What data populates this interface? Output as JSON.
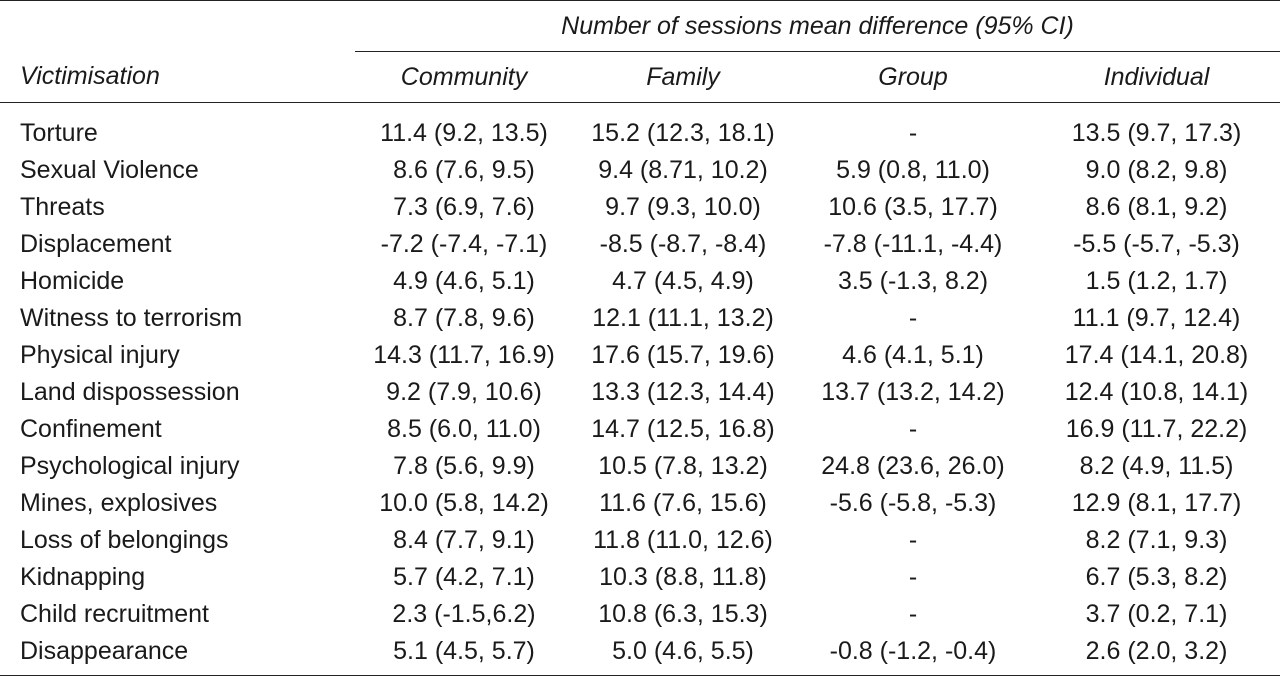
{
  "table": {
    "spanner": "Number of sessions mean difference (95% CI)",
    "headers": [
      "Victimisation",
      "Community",
      "Family",
      "Group",
      "Individual"
    ],
    "rows": [
      {
        "label": "Torture",
        "community": "11.4 (9.2, 13.5)",
        "family": "15.2 (12.3, 18.1)",
        "group": "-",
        "individual": "13.5 (9.7, 17.3)"
      },
      {
        "label": "Sexual Violence",
        "community": "8.6 (7.6, 9.5)",
        "family": "9.4 (8.71, 10.2)",
        "group": "5.9 (0.8, 11.0)",
        "individual": "9.0 (8.2, 9.8)"
      },
      {
        "label": "Threats",
        "community": "7.3 (6.9, 7.6)",
        "family": "9.7 (9.3, 10.0)",
        "group": "10.6 (3.5, 17.7)",
        "individual": "8.6 (8.1, 9.2)"
      },
      {
        "label": "Displacement",
        "community": "-7.2 (-7.4, -7.1)",
        "family": "-8.5 (-8.7, -8.4)",
        "group": "-7.8 (-11.1, -4.4)",
        "individual": "-5.5 (-5.7, -5.3)"
      },
      {
        "label": "Homicide",
        "community": "4.9 (4.6, 5.1)",
        "family": "4.7 (4.5, 4.9)",
        "group": "3.5 (-1.3, 8.2)",
        "individual": "1.5 (1.2, 1.7)"
      },
      {
        "label": "Witness to terrorism",
        "community": "8.7 (7.8, 9.6)",
        "family": "12.1 (11.1, 13.2)",
        "group": "-",
        "individual": "11.1 (9.7, 12.4)"
      },
      {
        "label": "Physical injury",
        "community": "14.3 (11.7, 16.9)",
        "family": "17.6 (15.7, 19.6)",
        "group": "4.6 (4.1, 5.1)",
        "individual": "17.4 (14.1, 20.8)"
      },
      {
        "label": "Land dispossession",
        "community": "9.2 (7.9, 10.6)",
        "family": "13.3 (12.3, 14.4)",
        "group": "13.7 (13.2, 14.2)",
        "individual": "12.4 (10.8, 14.1)"
      },
      {
        "label": "Confinement",
        "community": "8.5 (6.0, 11.0)",
        "family": "14.7 (12.5, 16.8)",
        "group": "-",
        "individual": "16.9 (11.7, 22.2)"
      },
      {
        "label": "Psychological injury",
        "community": "7.8 (5.6, 9.9)",
        "family": "10.5 (7.8, 13.2)",
        "group": "24.8 (23.6, 26.0)",
        "individual": "8.2 (4.9, 11.5)"
      },
      {
        "label": "Mines, explosives",
        "community": "10.0 (5.8, 14.2)",
        "family": "11.6 (7.6, 15.6)",
        "group": "-5.6 (-5.8, -5.3)",
        "individual": "12.9 (8.1, 17.7)"
      },
      {
        "label": "Loss of belongings",
        "community": "8.4 (7.7, 9.1)",
        "family": "11.8 (11.0, 12.6)",
        "group": "-",
        "individual": "8.2 (7.1, 9.3)"
      },
      {
        "label": "Kidnapping",
        "community": "5.7 (4.2, 7.1)",
        "family": "10.3 (8.8, 11.8)",
        "group": "-",
        "individual": "6.7 (5.3, 8.2)"
      },
      {
        "label": "Child recruitment",
        "community": "2.3 (-1.5,6.2)",
        "family": "10.8 (6.3, 15.3)",
        "group": "-",
        "individual": "3.7 (0.2, 7.1)"
      },
      {
        "label": "Disappearance",
        "community": "5.1 (4.5, 5.7)",
        "family": "5.0 (4.6, 5.5)",
        "group": "-0.8 (-1.2, -0.4)",
        "individual": "2.6 (2.0, 3.2)"
      }
    ]
  }
}
